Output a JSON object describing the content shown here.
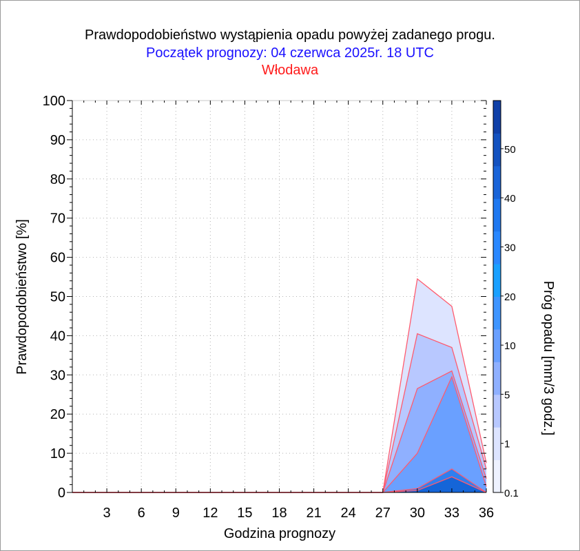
{
  "title": "Prawdopodobieństwo wystąpienia opadu powyżej zadanego progu.",
  "subtitle": "Początek prognozy: 04 czerwca 2025r. 18 UTC",
  "station": "Włodawa",
  "colors": {
    "title": "#000000",
    "subtitle": "#1a10ff",
    "station": "#ff1a1a",
    "series_outline": "#ff5a6e"
  },
  "chart_data": {
    "type": "area",
    "xlabel": "Godzina prognozy",
    "ylabel": "Prawdopodobieństwo [%]",
    "x": [
      0,
      3,
      6,
      9,
      12,
      15,
      18,
      21,
      24,
      27,
      30,
      33,
      36
    ],
    "x_ticks": [
      3,
      6,
      9,
      12,
      15,
      18,
      21,
      24,
      27,
      30,
      33,
      36
    ],
    "xlim": [
      0,
      36
    ],
    "ylim": [
      0,
      100
    ],
    "y_ticks": [
      0,
      10,
      20,
      30,
      40,
      50,
      60,
      70,
      80,
      90,
      100
    ],
    "grid": true,
    "series": [
      {
        "threshold": "0.1",
        "color": "#dde4ff",
        "values": [
          0,
          0,
          0,
          0,
          0,
          0,
          0,
          0,
          0,
          0,
          54.5,
          47.5,
          7.5
        ]
      },
      {
        "threshold": "1",
        "color": "#b8c8ff",
        "values": [
          0,
          0,
          0,
          0,
          0,
          0,
          0,
          0,
          0,
          0,
          40.5,
          37,
          6
        ]
      },
      {
        "threshold": "5",
        "color": "#8fb0ff",
        "values": [
          0,
          0,
          0,
          0,
          0,
          0,
          0,
          0,
          0,
          0,
          26.5,
          31,
          3.5
        ]
      },
      {
        "threshold": "10",
        "color": "#6aa0ff",
        "values": [
          0,
          0,
          0,
          0,
          0,
          0,
          0,
          0,
          0,
          0,
          10,
          29.5,
          1.5
        ]
      },
      {
        "threshold": "20",
        "color": "#2f7fef",
        "values": [
          0,
          0,
          0,
          0,
          0,
          0,
          0,
          0,
          0,
          0,
          1,
          6,
          0
        ]
      },
      {
        "threshold": "30",
        "color": "#1565d8",
        "values": [
          0,
          0,
          0,
          0,
          0,
          0,
          0,
          0,
          0,
          0,
          0.5,
          4,
          0
        ]
      }
    ],
    "colorbar": {
      "label": "Próg opadu [mm/3 godz.]",
      "tick_labels": [
        "0.1",
        "1",
        "5",
        "10",
        "20",
        "30",
        "40",
        "50"
      ],
      "segments": [
        "#eef2ff",
        "#dde4ff",
        "#b8c8ff",
        "#8fb0ff",
        "#6aa0ff",
        "#3f95ff",
        "#1aa0ff",
        "#2a88ff",
        "#1f78f0",
        "#1a64d8",
        "#1452c0",
        "#1040a8"
      ]
    }
  }
}
